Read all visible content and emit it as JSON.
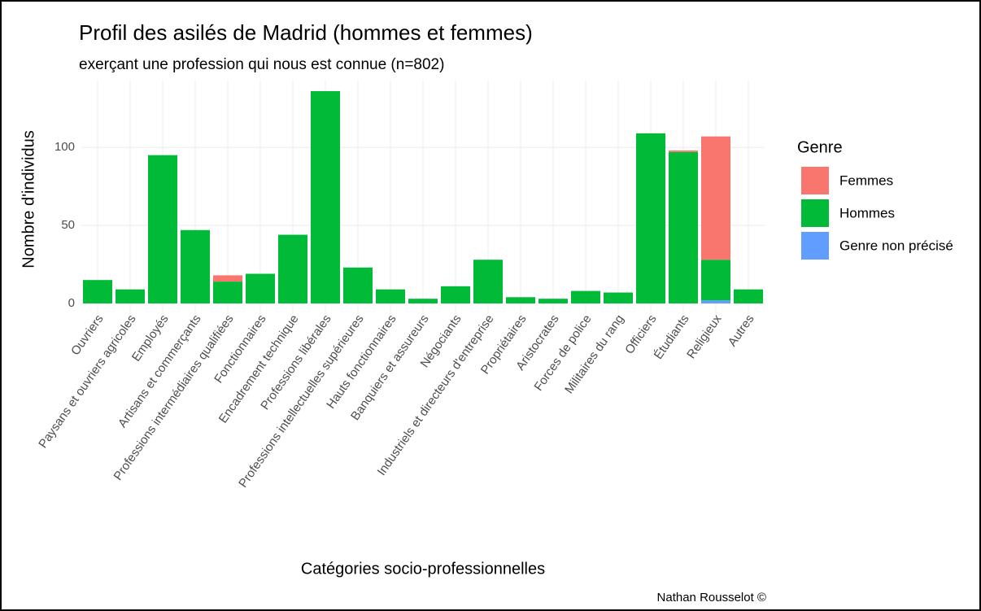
{
  "chart_data": {
    "type": "stacked_bar",
    "title": "Profil des asilés de Madrid (hommes et femmes)",
    "subtitle": "exerçant une profession qui nous est connue (n=802)",
    "x_label": "Catégories socio-professionnelles",
    "y_label": "Nombre d'individus",
    "caption": "Nathan Rousselot ©",
    "legend_title": "Genre",
    "categories": [
      "Ouvriers",
      "Paysans et ouvriers agricoles",
      "Employés",
      "Artisans et commerçants",
      "Professions intermédiaires qualifiées",
      "Fonctionnaires",
      "Encadrement technique",
      "Professions libérales",
      "Professions intellectuelles supérieures",
      "Hauts fonctionnaires",
      "Banquiers et assureurs",
      "Négociants",
      "Industriels et directeurs d'entreprise",
      "Propriétaires",
      "Aristocrates",
      "Forces de police",
      "Militaires du rang",
      "Officiers",
      "Étudiants",
      "Religieux",
      "Autres"
    ],
    "series": [
      {
        "name": "Femmes",
        "color": "#F8766D",
        "values": [
          0,
          0,
          0,
          0,
          4,
          0,
          0,
          0,
          0,
          0,
          0,
          0,
          0,
          0,
          0,
          0,
          0,
          0,
          1,
          79,
          0
        ]
      },
      {
        "name": "Hommes",
        "color": "#00BA38",
        "values": [
          15,
          9,
          95,
          47,
          14,
          19,
          44,
          136,
          23,
          9,
          3,
          11,
          28,
          4,
          3,
          8,
          7,
          109,
          97,
          26,
          9
        ]
      },
      {
        "name": "Genre non précisé",
        "color": "#619CFF",
        "values": [
          0,
          0,
          0,
          0,
          0,
          0,
          0,
          0,
          0,
          0,
          0,
          0,
          0,
          0,
          0,
          0,
          0,
          0,
          0,
          2,
          0
        ]
      }
    ],
    "ylim": [
      -6.8,
      142.8
    ],
    "yticks": [
      0,
      50,
      100
    ],
    "grid": true
  }
}
